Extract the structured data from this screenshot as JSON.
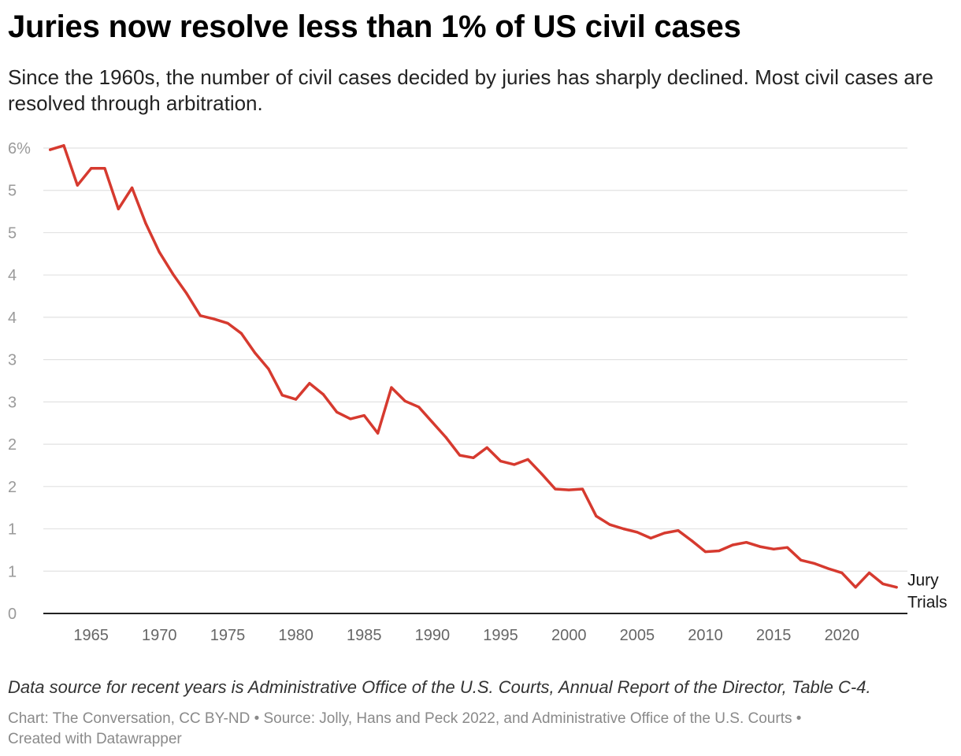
{
  "header": {
    "title": "Juries now resolve less than 1% of US civil cases",
    "subtitle": "Since the 1960s, the number of civil cases decided by juries has sharply declined. Most civil cases are resolved through arbitration."
  },
  "notes": {
    "source_note": "Data source for recent years is Administrative Office of the U.S. Courts, Annual Report of the Director, Table C-4.",
    "credits_line1": "Chart: The Conversation, CC BY-ND • Source: Jolly, Hans and Peck 2022, and Administrative Office of the U.S. Courts •",
    "credits_line2": "Created with Datawrapper"
  },
  "colors": {
    "line": "#d63a2f",
    "grid": "#e2e2e2",
    "baseline": "#222222"
  },
  "chart_data": {
    "type": "line",
    "title": "Juries now resolve less than 1% of US civil cases",
    "xlabel": "",
    "ylabel": "",
    "xlim": [
      1961.5,
      2024.8
    ],
    "ylim": [
      0,
      5.5
    ],
    "grid": true,
    "y_ticks": [
      {
        "value": 0,
        "label": "0"
      },
      {
        "value": 0.5,
        "label": "1"
      },
      {
        "value": 1,
        "label": "1"
      },
      {
        "value": 1.5,
        "label": "2"
      },
      {
        "value": 2,
        "label": "2"
      },
      {
        "value": 2.5,
        "label": "3"
      },
      {
        "value": 3,
        "label": "3"
      },
      {
        "value": 3.5,
        "label": "4"
      },
      {
        "value": 4,
        "label": "4"
      },
      {
        "value": 4.5,
        "label": "5"
      },
      {
        "value": 5,
        "label": "5"
      },
      {
        "value": 5.5,
        "label": "6%"
      }
    ],
    "x_ticks": [
      {
        "value": 1965,
        "label": "1965"
      },
      {
        "value": 1970,
        "label": "1970"
      },
      {
        "value": 1975,
        "label": "1975"
      },
      {
        "value": 1980,
        "label": "1980"
      },
      {
        "value": 1985,
        "label": "1985"
      },
      {
        "value": 1990,
        "label": "1990"
      },
      {
        "value": 1995,
        "label": "1995"
      },
      {
        "value": 2000,
        "label": "2000"
      },
      {
        "value": 2005,
        "label": "2005"
      },
      {
        "value": 2010,
        "label": "2010"
      },
      {
        "value": 2015,
        "label": "2015"
      },
      {
        "value": 2020,
        "label": "2020"
      }
    ],
    "series": [
      {
        "name": "Jury Trials",
        "label_lines": [
          "Jury",
          "Trials"
        ],
        "x": [
          1962,
          1963,
          1964,
          1965,
          1966,
          1967,
          1968,
          1969,
          1970,
          1971,
          1972,
          1973,
          1974,
          1975,
          1976,
          1977,
          1978,
          1979,
          1980,
          1981,
          1982,
          1983,
          1984,
          1985,
          1986,
          1987,
          1988,
          1989,
          1990,
          1991,
          1992,
          1993,
          1994,
          1995,
          1996,
          1997,
          1998,
          1999,
          2000,
          2001,
          2002,
          2003,
          2004,
          2005,
          2006,
          2007,
          2008,
          2009,
          2010,
          2011,
          2012,
          2013,
          2014,
          2015,
          2016,
          2017,
          2018,
          2019,
          2020,
          2021,
          2022,
          2023,
          2024
        ],
        "values": [
          5.48,
          5.53,
          5.06,
          5.26,
          5.26,
          4.78,
          5.03,
          4.61,
          4.27,
          4.01,
          3.78,
          3.52,
          3.48,
          3.43,
          3.31,
          3.08,
          2.89,
          2.58,
          2.53,
          2.72,
          2.59,
          2.38,
          2.3,
          2.34,
          2.13,
          2.67,
          2.51,
          2.44,
          2.26,
          2.08,
          1.87,
          1.84,
          1.96,
          1.8,
          1.76,
          1.82,
          1.65,
          1.47,
          1.46,
          1.47,
          1.15,
          1.05,
          1.0,
          0.96,
          0.89,
          0.95,
          0.98,
          0.86,
          0.73,
          0.74,
          0.81,
          0.84,
          0.79,
          0.76,
          0.78,
          0.63,
          0.59,
          0.53,
          0.48,
          0.31,
          0.48,
          0.35,
          0.31
        ]
      }
    ]
  }
}
